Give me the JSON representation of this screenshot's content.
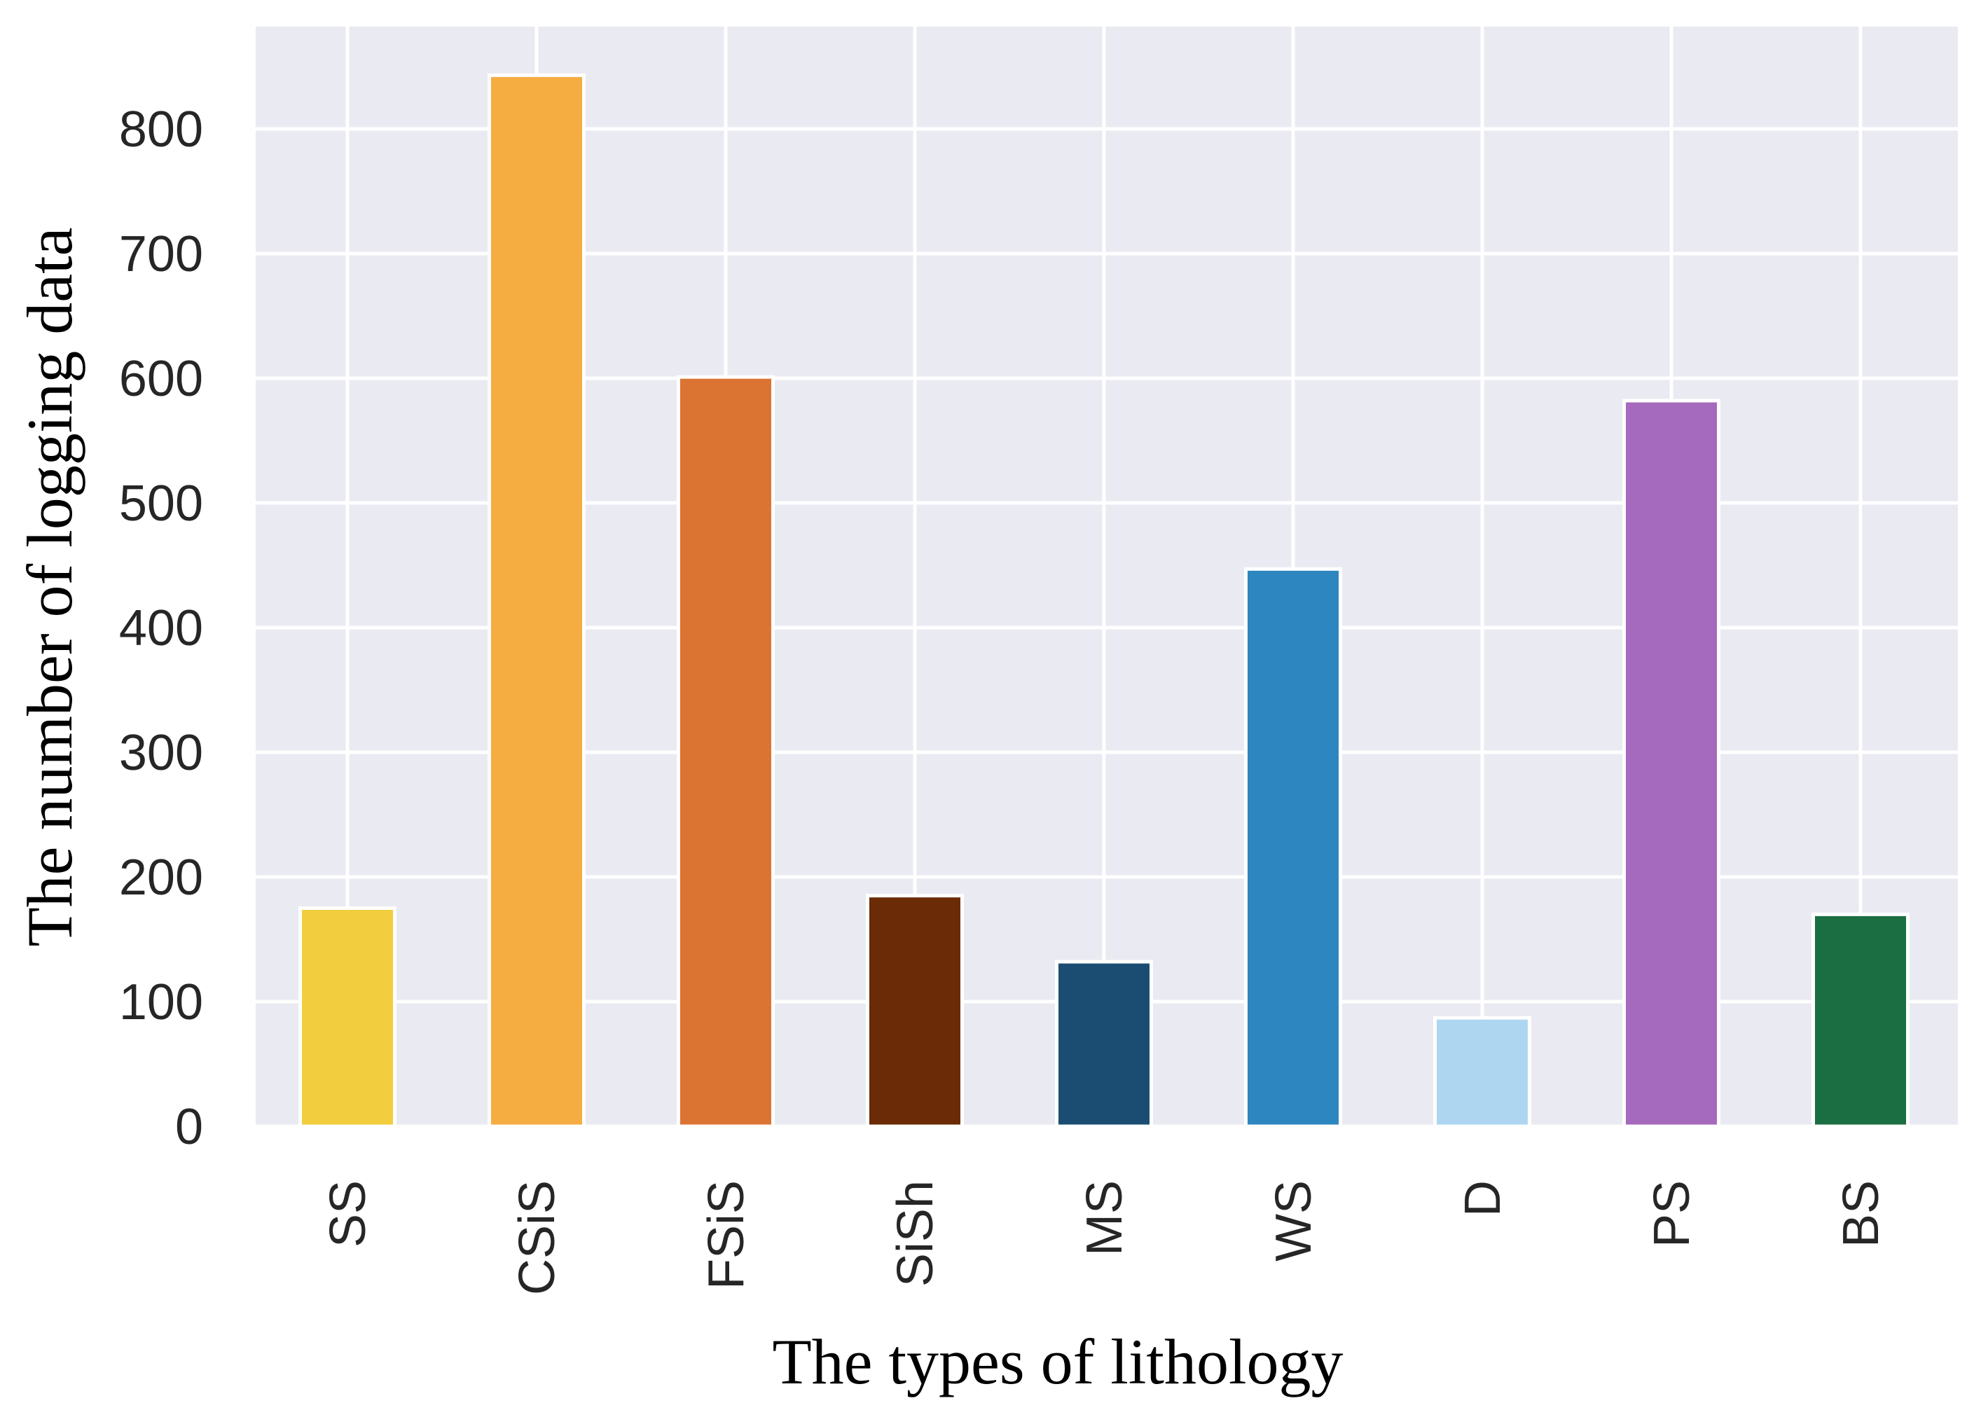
{
  "chart_data": {
    "type": "bar",
    "title": "",
    "xlabel": "The types of lithology",
    "ylabel": "The number of  logging data",
    "categories": [
      "SS",
      "CSiS",
      "FSiS",
      "SiSh",
      "MS",
      "WS",
      "D",
      "PS",
      "BS"
    ],
    "values": [
      175,
      843,
      601,
      185,
      132,
      447,
      87,
      582,
      170
    ],
    "colors": [
      "#F2CD3D",
      "#F5AD42",
      "#DB7433",
      "#6B2B06",
      "#1B4D72",
      "#2E86C1",
      "#AED6F1",
      "#A569BD",
      "#1A6E42"
    ],
    "ylim": [
      0,
      882
    ],
    "yticks": [
      0,
      100,
      200,
      300,
      400,
      500,
      600,
      700,
      800
    ],
    "ytick_labels": [
      "0",
      "100",
      "200",
      "300",
      "400",
      "500",
      "600",
      "700",
      "800"
    ],
    "grid": true,
    "background": "#EAEAF2"
  }
}
